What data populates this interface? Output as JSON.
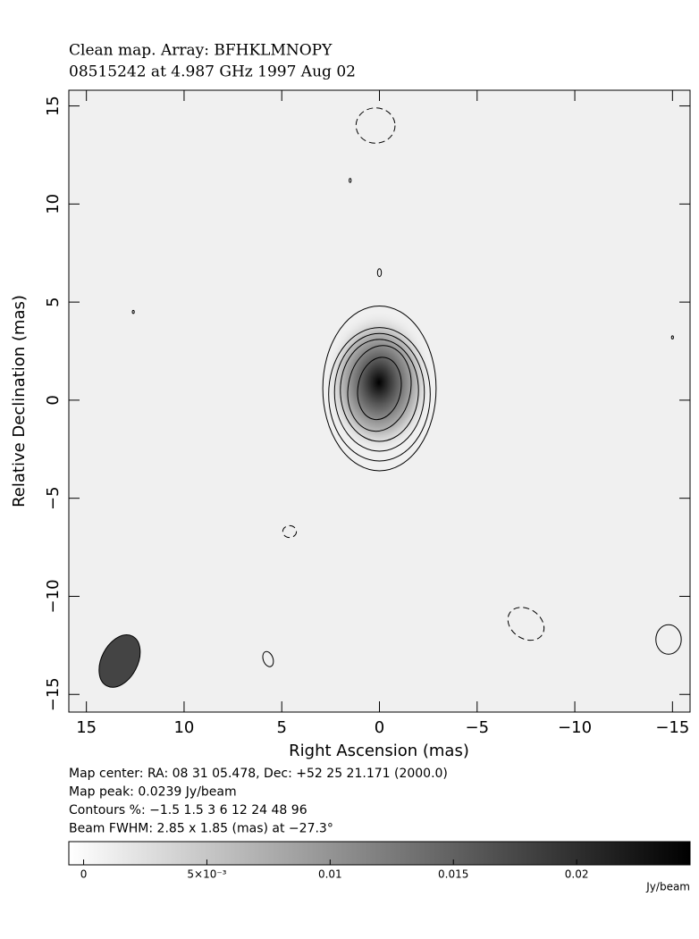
{
  "chart_data": {
    "type": "contour",
    "title": "Clean map.  Array: BFHKLMNOPY",
    "subtitle": "08515242 at 4.987 GHz 1997 Aug 02",
    "x_label": "Right Ascension  (mas)",
    "y_label": "Relative Declination  (mas)",
    "xlim": [
      15.9,
      -15.9
    ],
    "ylim": [
      -15.9,
      15.8
    ],
    "xticks": [
      15,
      10,
      5,
      0,
      {
        "value": -5,
        "label": "−5"
      },
      {
        "value": -10,
        "label": "−10"
      },
      {
        "value": -15,
        "label": "−15"
      }
    ],
    "yticks": [
      {
        "value": -15,
        "label": "−15"
      },
      {
        "value": -10,
        "label": "−10"
      },
      {
        "value": -5,
        "label": "−5"
      },
      0,
      5,
      10,
      15
    ],
    "info": [
      "Map center:  RA: 08 31 05.478,  Dec: +52 25 21.171 (2000.0)",
      "Map peak: 0.0239 Jy/beam",
      "Contours %: −1.5 1.5 3 6 12 24 48 96",
      "Beam FWHM: 2.85 x 1.85 (mas) at −27.3°"
    ],
    "beam": {
      "x": 13.3,
      "y": -13.3,
      "major": 2.85,
      "minor": 1.85,
      "angle": -27.3,
      "color": "#444444"
    },
    "features": [
      {
        "x": 0,
        "y": 0.6,
        "rx": 2.9,
        "ry": 4.2,
        "angle": 0,
        "level": 1.5
      },
      {
        "x": 0,
        "y": 0.3,
        "rx": 2.6,
        "ry": 3.4,
        "angle": 0,
        "level": 3
      },
      {
        "x": 0,
        "y": 0.4,
        "rx": 2.3,
        "ry": 3.0,
        "angle": 0,
        "level": 6
      },
      {
        "x": 0,
        "y": 0.5,
        "rx": 2.0,
        "ry": 2.6,
        "angle": 0,
        "level": 12
      },
      {
        "x": 0,
        "y": 0.6,
        "rx": 1.6,
        "ry": 2.2,
        "angle": -10,
        "level": 24
      },
      {
        "x": 0,
        "y": 0.6,
        "rx": 1.1,
        "ry": 1.6,
        "angle": -10,
        "level": 48
      },
      {
        "x": 0.2,
        "y": 14.0,
        "rx": 1.0,
        "ry": 0.9,
        "angle": 0,
        "level": -1.5
      },
      {
        "x": 0,
        "y": 6.5,
        "rx": 0.1,
        "ry": 0.2,
        "angle": 0,
        "level": 1.5
      },
      {
        "x": 1.5,
        "y": 11.2,
        "rx": 0.05,
        "ry": 0.1,
        "angle": 0,
        "level": 1.5
      },
      {
        "x": 12.6,
        "y": 4.5,
        "rx": 0.05,
        "ry": 0.08,
        "angle": 0,
        "level": 1.5
      },
      {
        "x": -15.0,
        "y": 3.2,
        "rx": 0.05,
        "ry": 0.08,
        "angle": 0,
        "level": 1.5
      },
      {
        "x": 4.6,
        "y": -6.7,
        "rx": 0.35,
        "ry": 0.3,
        "angle": 0,
        "level": -1.5
      },
      {
        "x": -7.5,
        "y": -11.4,
        "rx": 1.0,
        "ry": 0.75,
        "angle": -35,
        "level": -1.5
      },
      {
        "x": 5.7,
        "y": -13.2,
        "rx": 0.25,
        "ry": 0.4,
        "angle": 20,
        "level": 1.5
      },
      {
        "x": -14.8,
        "y": -12.2,
        "rx": 0.65,
        "ry": 0.75,
        "angle": 0,
        "level": 1.5
      }
    ],
    "colorbar": {
      "clim": [
        -0.0006,
        0.0246
      ],
      "unit": "Jy/beam",
      "ticks": [
        0,
        {
          "value": 0.005,
          "label": "5×10⁻³"
        },
        0.01,
        0.015,
        0.02
      ]
    }
  }
}
